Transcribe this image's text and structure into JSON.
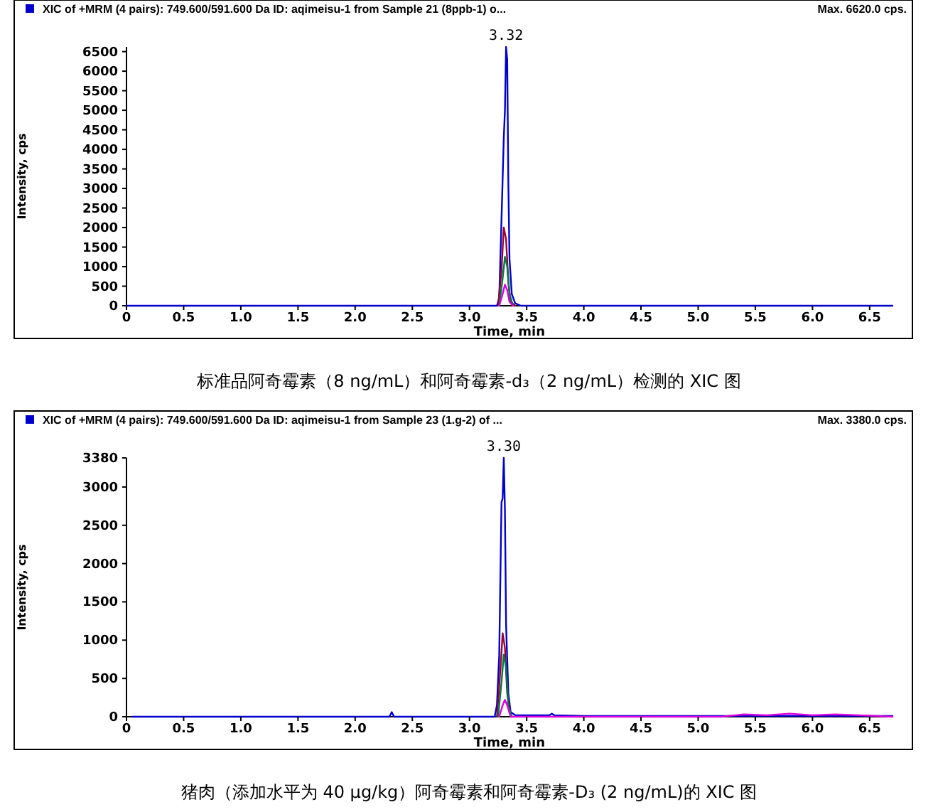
{
  "chart_data": [
    {
      "type": "line",
      "title": "XIC of +MRM (4 pairs): 749.600/591.600 Da ID: aqimeisu-1 from Sample 21 (8ppb-1) o...",
      "xlabel": "Time, min",
      "ylabel": "Intensity, cps",
      "xlim": [
        0,
        6.7
      ],
      "xticks": [
        0.0,
        {
          "value": 0.5,
          "label": "0.5"
        },
        {
          "value": 1,
          "label": "1.0"
        },
        1.5,
        {
          "value": 2,
          "label": "2.0"
        },
        2.5,
        {
          "value": 3,
          "label": "3.0"
        },
        3.5,
        {
          "value": 4,
          "label": "4.0"
        },
        4.5,
        {
          "value": 5,
          "label": "5.0"
        },
        5.5,
        {
          "value": 6,
          "label": "6.0"
        },
        6.5
      ],
      "ylim": [
        0,
        6620
      ],
      "yticks": [
        0,
        500,
        1000,
        1500,
        2000,
        2500,
        3000,
        3500,
        4000,
        4500,
        5000,
        5500,
        6000,
        6500
      ],
      "series": [
        {
          "color": "#0000cc",
          "x": [
            0,
            3.24,
            3.26,
            3.28,
            3.3,
            3.31,
            3.32,
            3.33,
            3.34,
            3.35,
            3.37,
            3.4,
            3.45,
            6.7
          ],
          "values": [
            0,
            0,
            200,
            2200,
            4300,
            5000,
            6620,
            6300,
            3100,
            1200,
            300,
            60,
            0,
            0
          ]
        },
        {
          "color": "#990033",
          "x": [
            3.25,
            3.28,
            3.3,
            3.32,
            3.34,
            3.36,
            3.4
          ],
          "values": [
            0,
            900,
            2000,
            1700,
            600,
            100,
            0
          ]
        },
        {
          "color": "#007744",
          "x": [
            3.26,
            3.29,
            3.31,
            3.33,
            3.35,
            3.38
          ],
          "values": [
            0,
            700,
            1250,
            1000,
            300,
            0
          ]
        },
        {
          "color": "#dd00dd",
          "x": [
            3.26,
            3.29,
            3.31,
            3.33,
            3.35,
            3.38
          ],
          "values": [
            0,
            300,
            540,
            400,
            100,
            0
          ]
        }
      ],
      "annotations": [
        "Max. 6620.0 cps.",
        {
          "text": "3.32",
          "x": 3.32,
          "y": 6620
        },
        "标准品阿奇霉素（8 ng/mL）和阿奇霉素-d₃（2 ng/mL）检测的 XIC 图"
      ]
    },
    {
      "type": "line",
      "title": "XIC of +MRM (4 pairs): 749.600/591.600 Da ID: aqimeisu-1 from Sample 23 (1.g-2) of ...",
      "xlabel": "Time, min",
      "ylabel": "Intensity, cps",
      "xlim": [
        0,
        6.7
      ],
      "xticks": [
        0.0,
        {
          "value": 0.5,
          "label": "0.5"
        },
        {
          "value": 1,
          "label": "1.0"
        },
        1.5,
        {
          "value": 2,
          "label": "2.0"
        },
        2.5,
        {
          "value": 3,
          "label": "3.0"
        },
        3.5,
        {
          "value": 4,
          "label": "4.0"
        },
        4.5,
        {
          "value": 5,
          "label": "5.0"
        },
        5.5,
        {
          "value": 6,
          "label": "6.0"
        },
        6.5
      ],
      "ylim": [
        0,
        3380
      ],
      "yticks": [
        0,
        500,
        1000,
        1500,
        2000,
        2500,
        3000,
        3380
      ],
      "series": [
        {
          "color": "#0000cc",
          "x": [
            0.05,
            2.3,
            2.32,
            2.34,
            3.22,
            3.24,
            3.26,
            3.28,
            3.29,
            3.3,
            3.31,
            3.32,
            3.34,
            3.36,
            3.4,
            3.7,
            3.72,
            3.74,
            4.0,
            6.7
          ],
          "values": [
            0,
            0,
            60,
            0,
            0,
            150,
            800,
            2800,
            2850,
            3380,
            2700,
            1200,
            300,
            60,
            20,
            20,
            40,
            20,
            10,
            10
          ]
        },
        {
          "color": "#990033",
          "x": [
            3.24,
            3.27,
            3.29,
            3.31,
            3.33,
            3.36
          ],
          "values": [
            0,
            600,
            1090,
            900,
            300,
            0
          ]
        },
        {
          "color": "#007744",
          "x": [
            3.25,
            3.28,
            3.3,
            3.32,
            3.34,
            3.37
          ],
          "values": [
            0,
            450,
            810,
            650,
            150,
            0
          ]
        },
        {
          "color": "#dd00dd",
          "x": [
            3.26,
            3.29,
            3.31,
            3.33,
            3.36,
            5.2,
            5.4,
            5.6,
            5.8,
            6.0,
            6.2,
            6.4,
            6.7
          ],
          "values": [
            0,
            150,
            220,
            150,
            0,
            0,
            30,
            20,
            40,
            20,
            30,
            20,
            0
          ]
        }
      ],
      "annotations": [
        "Max. 3380.0 cps.",
        {
          "text": "3.30",
          "x": 3.3,
          "y": 3380
        },
        "猪肉（添加水平为 40 μg/kg）阿奇霉素和阿奇霉素-D₃ (2 ng/mL)的 XIC 图"
      ]
    }
  ]
}
